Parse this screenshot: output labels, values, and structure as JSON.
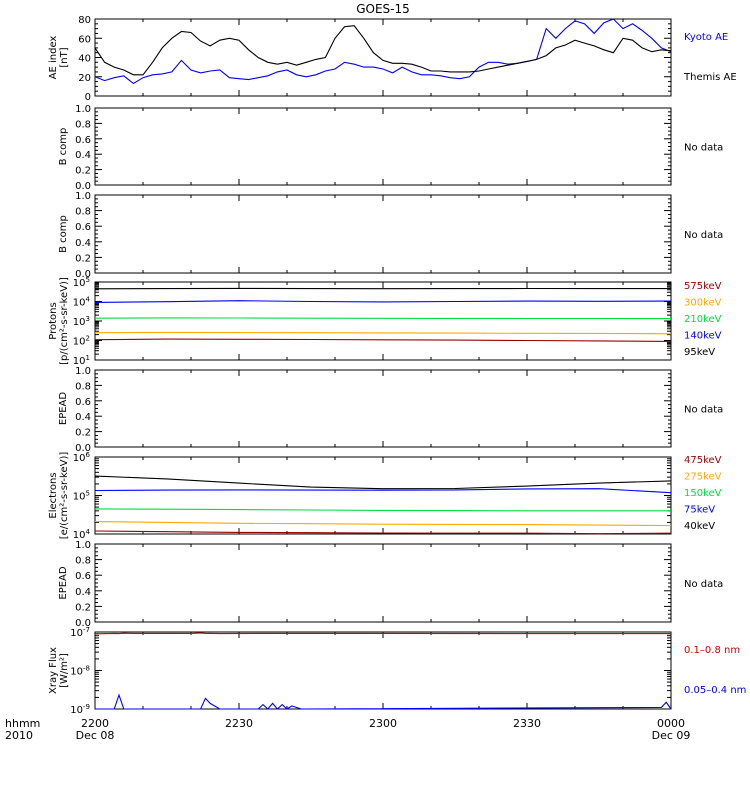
{
  "title": "GOES-15",
  "time_axis": {
    "tick_labels": [
      "2200",
      "2230",
      "2300",
      "2330",
      "0000"
    ],
    "date_labels": [
      "Dec 08",
      "Dec 09"
    ],
    "left_labels": [
      "hhmm",
      "2010"
    ]
  },
  "no_data_text": "No data",
  "chart_data": [
    {
      "type": "line",
      "panel": "ae",
      "ylabel": [
        "AE index",
        "[nT]"
      ],
      "ylim": [
        0,
        80
      ],
      "yticks": [
        "0",
        "20",
        "40",
        "60",
        "80"
      ],
      "x_minutes": [
        0,
        2,
        4,
        6,
        8,
        10,
        12,
        14,
        16,
        18,
        20,
        22,
        24,
        26,
        28,
        30,
        32,
        34,
        36,
        38,
        40,
        42,
        44,
        46,
        48,
        50,
        52,
        54,
        56,
        58,
        60,
        62,
        64,
        66,
        68,
        70,
        72,
        74,
        76,
        78,
        80,
        82,
        84,
        86,
        88,
        90,
        92,
        94,
        96,
        98,
        100,
        102,
        104,
        106,
        108,
        110,
        112,
        114,
        116,
        118,
        120
      ],
      "series": [
        {
          "name": "Kyoto AE",
          "color": "#0000ff",
          "values": [
            20,
            16,
            19,
            21,
            13,
            19,
            22,
            23,
            25,
            37,
            27,
            24,
            26,
            27,
            19,
            18,
            17,
            19,
            21,
            25,
            27,
            22,
            20,
            22,
            26,
            28,
            35,
            33,
            30,
            30,
            28,
            24,
            30,
            25,
            22,
            22,
            21,
            19,
            18,
            20,
            30,
            35,
            35,
            33,
            34,
            36,
            38,
            70,
            60,
            70,
            78,
            75,
            65,
            76,
            80,
            70,
            75,
            68,
            60,
            50,
            46
          ]
        },
        {
          "name": "Themis AE",
          "color": "#000000",
          "values": [
            50,
            35,
            30,
            27,
            22,
            22,
            35,
            50,
            60,
            67,
            66,
            57,
            52,
            58,
            60,
            58,
            48,
            40,
            35,
            33,
            35,
            32,
            35,
            38,
            40,
            60,
            72,
            73,
            60,
            45,
            37,
            34,
            34,
            33,
            30,
            26,
            26,
            25,
            25,
            25,
            26,
            28,
            30,
            32,
            34,
            36,
            38,
            42,
            50,
            53,
            58,
            55,
            52,
            48,
            45,
            60,
            58,
            50,
            46,
            48,
            47
          ]
        }
      ]
    },
    {
      "type": "line",
      "panel": "b1",
      "ylabel": [
        "B comp"
      ],
      "ylim": [
        0,
        1
      ],
      "yticks": [
        "0.0",
        "0.2",
        "0.4",
        "0.6",
        "0.8",
        "1.0"
      ],
      "series": []
    },
    {
      "type": "line",
      "panel": "b2",
      "ylabel": [
        "B comp"
      ],
      "ylim": [
        0,
        1
      ],
      "yticks": [
        "0.0",
        "0.2",
        "0.4",
        "0.6",
        "0.8",
        "1.0"
      ],
      "series": []
    },
    {
      "type": "line",
      "panel": "protons",
      "log": true,
      "ylabel": [
        "Protons",
        "[p/(cm²-s-sr-keV)]"
      ],
      "ylim": [
        10,
        100000
      ],
      "ytick_exponents": [
        1,
        2,
        3,
        4,
        5
      ],
      "x_minutes": [
        0,
        15,
        30,
        45,
        60,
        75,
        90,
        105,
        120
      ],
      "series": [
        {
          "name": "575keV",
          "color": "#990000",
          "values": [
            110,
            118,
            115,
            112,
            108,
            105,
            100,
            95,
            90
          ]
        },
        {
          "name": "300keV",
          "color": "#ffaa00",
          "values": [
            250,
            260,
            255,
            250,
            245,
            240,
            235,
            230,
            220
          ]
        },
        {
          "name": "210keV",
          "color": "#00dd44",
          "values": [
            1400,
            1450,
            1420,
            1400,
            1380,
            1360,
            1350,
            1340,
            1320
          ]
        },
        {
          "name": "140keV",
          "color": "#0000ff",
          "values": [
            9000,
            9800,
            11000,
            10000,
            9500,
            10000,
            10500,
            10200,
            10500
          ]
        },
        {
          "name": "95keV",
          "color": "#000000",
          "values": [
            45000,
            46000,
            47000,
            46000,
            45500,
            46000,
            46500,
            46000,
            46000
          ]
        }
      ]
    },
    {
      "type": "line",
      "panel": "epead1",
      "ylabel": [
        "EPEAD"
      ],
      "ylim": [
        0,
        1
      ],
      "yticks": [
        "0.0",
        "0.2",
        "0.4",
        "0.6",
        "0.8",
        "1.0"
      ],
      "series": []
    },
    {
      "type": "line",
      "panel": "electrons",
      "log": true,
      "ylabel": [
        "Electrons",
        "[e/(cm²-s-sr-keV)]"
      ],
      "ylim": [
        10000,
        1000000
      ],
      "ytick_exponents": [
        4,
        5,
        6
      ],
      "x_minutes": [
        0,
        15,
        30,
        45,
        60,
        75,
        90,
        105,
        120
      ],
      "series": [
        {
          "name": "475keV",
          "color": "#990000",
          "values": [
            12000,
            11500,
            11000,
            10800,
            10600,
            10500,
            10500,
            10200,
            10500
          ]
        },
        {
          "name": "275keV",
          "color": "#ffaa00",
          "values": [
            21000,
            20000,
            19000,
            18500,
            18000,
            17800,
            17500,
            17000,
            16500
          ]
        },
        {
          "name": "150keV",
          "color": "#00dd44",
          "values": [
            45000,
            44000,
            43000,
            42000,
            41000,
            40500,
            40000,
            40000,
            40000
          ]
        },
        {
          "name": "75keV",
          "color": "#0000ff",
          "values": [
            135000,
            138000,
            140000,
            138000,
            137000,
            140000,
            148000,
            150000,
            118000
          ]
        },
        {
          "name": "40keV",
          "color": "#000000",
          "values": [
            320000,
            270000,
            210000,
            165000,
            150000,
            152000,
            175000,
            210000,
            240000
          ]
        }
      ]
    },
    {
      "type": "line",
      "panel": "epead2",
      "ylabel": [
        "EPEAD"
      ],
      "ylim": [
        0,
        1
      ],
      "yticks": [
        "0.0",
        "0.2",
        "0.4",
        "0.6",
        "0.8",
        "1.0"
      ],
      "series": []
    },
    {
      "type": "line",
      "panel": "xray",
      "log": true,
      "ylabel": [
        "Xray Flux",
        "[W/m²]"
      ],
      "ylim": [
        1e-09,
        1e-07
      ],
      "ytick_exponents": [
        -9,
        -8,
        -7
      ],
      "x_minutes": [
        0,
        4,
        5,
        6,
        8,
        20,
        22,
        23,
        24,
        26,
        34,
        35,
        36,
        37,
        38,
        39,
        40,
        41,
        43,
        118,
        119,
        120
      ],
      "series": [
        {
          "name": "0.1–0.8 nm",
          "color": "#cc0000",
          "values": [
            9e-08,
            9.2e-08,
            9.1e-08,
            9.3e-08,
            9.2e-08,
            9.2e-08,
            9.5e-08,
            9.2e-08,
            9.2e-08,
            9.1e-08,
            9.2e-08,
            9.2e-08,
            9.2e-08,
            9.2e-08,
            9.2e-08,
            9.2e-08,
            9.2e-08,
            9.2e-08,
            9.2e-08,
            9.1e-08,
            9.1e-08,
            9.1e-08
          ]
        },
        {
          "name": "0.05–0.4 nm",
          "color": "#0000ff",
          "values": [
            1e-09,
            1e-09,
            2.3e-09,
            1e-09,
            1e-09,
            1e-09,
            1e-09,
            1.9e-09,
            1.4e-09,
            1e-09,
            1e-09,
            1.3e-09,
            1e-09,
            1.4e-09,
            1e-09,
            1.3e-09,
            1e-09,
            1.2e-09,
            1e-09,
            1.1e-09,
            1.5e-09,
            1e-09
          ]
        }
      ]
    }
  ]
}
